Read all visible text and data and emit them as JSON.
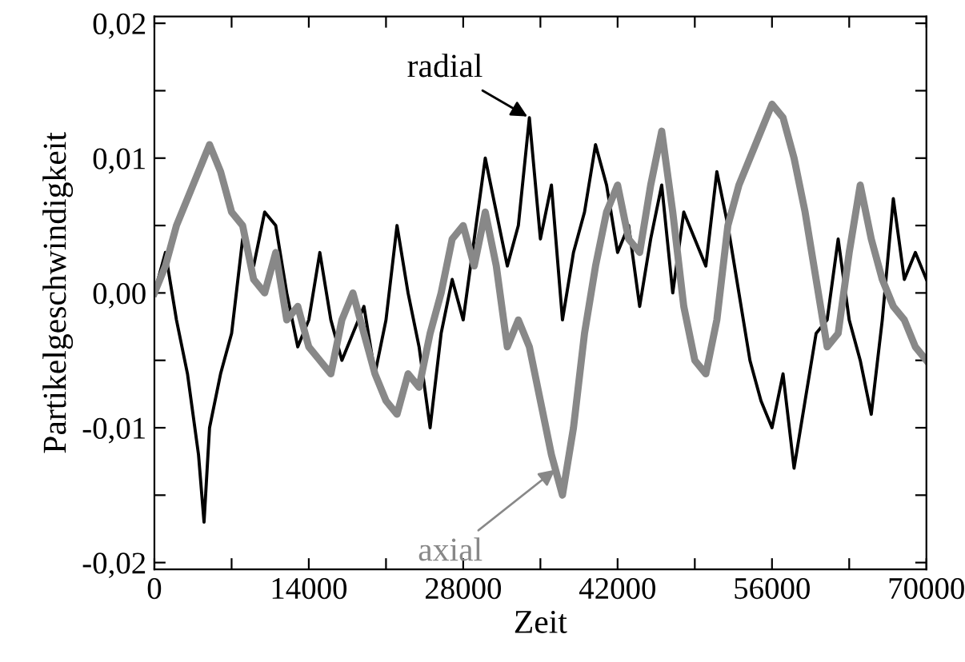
{
  "chart_data": {
    "type": "line",
    "xlabel": "Zeit",
    "ylabel": "Partikelgeschwindigkeit",
    "x": [
      0,
      1000,
      2000,
      3000,
      4000,
      4500,
      5000,
      6000,
      7000,
      8000,
      9000,
      10000,
      11000,
      12000,
      13000,
      14000,
      15000,
      16000,
      17000,
      18000,
      19000,
      20000,
      21000,
      22000,
      23000,
      24000,
      25000,
      26000,
      27000,
      28000,
      29000,
      30000,
      31000,
      32000,
      33000,
      34000,
      35000,
      36000,
      37000,
      38000,
      39000,
      40000,
      41000,
      42000,
      43000,
      44000,
      45000,
      46000,
      47000,
      48000,
      49000,
      50000,
      51000,
      52000,
      53000,
      54000,
      55000,
      56000,
      57000,
      58000,
      59000,
      60000,
      61000,
      62000,
      63000,
      64000,
      65000,
      66000,
      67000,
      68000,
      69000,
      70000
    ],
    "series": [
      {
        "color": "#000000",
        "values": [
          0.0,
          0.003,
          -0.002,
          -0.006,
          -0.012,
          -0.017,
          -0.01,
          -0.006,
          -0.003,
          0.004,
          0.002,
          0.006,
          0.005,
          0.0,
          -0.004,
          -0.002,
          0.003,
          -0.002,
          -0.005,
          -0.003,
          -0.001,
          -0.006,
          -0.002,
          0.005,
          0.0,
          -0.004,
          -0.01,
          -0.003,
          0.001,
          -0.002,
          0.004,
          0.01,
          0.006,
          0.002,
          0.005,
          0.013,
          0.004,
          0.008,
          -0.002,
          0.003,
          0.006,
          0.011,
          0.008,
          0.003,
          0.005,
          -0.001,
          0.004,
          0.008,
          0.0,
          0.006,
          0.004,
          0.002,
          0.009,
          0.005,
          0.0,
          -0.005,
          -0.008,
          -0.01,
          -0.006,
          -0.013,
          -0.008,
          -0.003,
          -0.002,
          0.004,
          -0.002,
          -0.005,
          -0.009,
          -0.002,
          0.007,
          0.001,
          0.003,
          0.001
        ]
      },
      {
        "color": "#888888",
        "values": [
          0.0,
          0.002,
          0.005,
          0.007,
          0.009,
          0.01,
          0.011,
          0.009,
          0.006,
          0.005,
          0.001,
          0.0,
          0.003,
          -0.002,
          -0.001,
          -0.004,
          -0.005,
          -0.006,
          -0.002,
          0.0,
          -0.003,
          -0.006,
          -0.008,
          -0.009,
          -0.006,
          -0.007,
          -0.003,
          0.0,
          0.004,
          0.005,
          0.002,
          0.006,
          0.002,
          -0.004,
          -0.002,
          -0.004,
          -0.008,
          -0.012,
          -0.015,
          -0.01,
          -0.003,
          0.002,
          0.006,
          0.008,
          0.004,
          0.003,
          0.008,
          0.012,
          0.006,
          -0.001,
          -0.005,
          -0.006,
          -0.002,
          0.005,
          0.008,
          0.01,
          0.012,
          0.014,
          0.013,
          0.01,
          0.006,
          0.001,
          -0.004,
          -0.003,
          0.003,
          0.008,
          0.004,
          0.001,
          -0.001,
          -0.002,
          -0.004,
          -0.005
        ]
      }
    ],
    "annotations": [
      {
        "text": "radial",
        "x": 34000,
        "y": 0.013
      },
      {
        "text": "axial",
        "x": 36500,
        "y": -0.013
      }
    ],
    "xlim": [
      0,
      70000
    ],
    "xticks": [
      0,
      {
        "value": 7000,
        "label": null
      },
      14000,
      {
        "value": 21000,
        "label": null
      },
      28000,
      {
        "value": 35000,
        "label": null
      },
      42000,
      {
        "value": 49000,
        "label": null
      },
      56000,
      {
        "value": 63000,
        "label": null
      },
      70000
    ],
    "ylim": [
      -0.0205,
      0.0205
    ],
    "yticks": [
      {
        "value": -0.02,
        "label": "-0,02"
      },
      {
        "value": -0.015,
        "label": null
      },
      {
        "value": -0.01,
        "label": "-0,01"
      },
      {
        "value": -0.005,
        "label": null
      },
      {
        "value": 0,
        "label": "0,00"
      },
      {
        "value": 0.005,
        "label": null
      },
      {
        "value": 0.01,
        "label": "0,01"
      },
      {
        "value": 0.015,
        "label": null
      },
      {
        "value": 0.02,
        "label": "0,02"
      }
    ],
    "grid": false,
    "legend": false
  }
}
